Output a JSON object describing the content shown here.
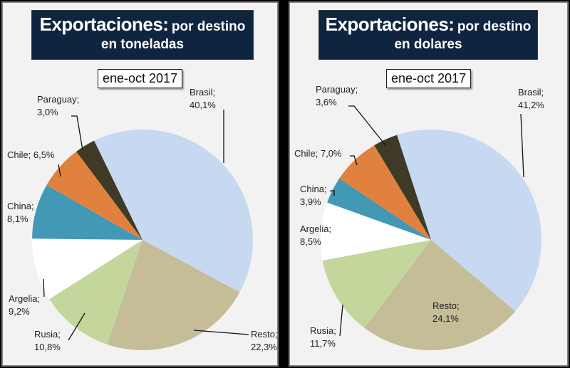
{
  "chart_data": [
    {
      "type": "pie",
      "title": "Exportaciones: por destino",
      "subtitle": "en toneladas",
      "period": "ene-oct 2017",
      "unit": "%",
      "slices": [
        {
          "label": "Brasil",
          "value": 40.1,
          "text": "40,1%",
          "color": "#c6d9f1"
        },
        {
          "label": "Resto",
          "value": 22.3,
          "text": "22,3%",
          "color": "#c4bd97"
        },
        {
          "label": "Rusia",
          "value": 10.8,
          "text": "10,8%",
          "color": "#c3d69b"
        },
        {
          "label": "Argelia",
          "value": 9.2,
          "text": "9,2%",
          "color": "#ffffff"
        },
        {
          "label": "China",
          "value": 8.1,
          "text": "8,1%",
          "color": "#4298b5"
        },
        {
          "label": "Chile",
          "value": 6.5,
          "text": "6,5%",
          "color": "#e0823d"
        },
        {
          "label": "Paraguay",
          "value": 3.0,
          "text": "3,0%",
          "color": "#3e3a26"
        }
      ]
    },
    {
      "type": "pie",
      "title": "Exportaciones: por destino",
      "subtitle": "en dolares",
      "period": "ene-oct 2017",
      "unit": "%",
      "slices": [
        {
          "label": "Brasil",
          "value": 41.2,
          "text": "41,2%",
          "color": "#c6d9f1"
        },
        {
          "label": "Resto",
          "value": 24.1,
          "text": "24,1%",
          "color": "#c4bd97"
        },
        {
          "label": "Rusia",
          "value": 11.7,
          "text": "11,7%",
          "color": "#c3d69b"
        },
        {
          "label": "Argelia",
          "value": 8.5,
          "text": "8,5%",
          "color": "#ffffff"
        },
        {
          "label": "China",
          "value": 3.9,
          "text": "3,9%",
          "color": "#4298b5"
        },
        {
          "label": "Chile",
          "value": 7.0,
          "text": "7,0%",
          "color": "#e0823d"
        },
        {
          "label": "Paraguay",
          "value": 3.6,
          "text": "3,6%",
          "color": "#3e3a26"
        }
      ]
    }
  ],
  "panels": [
    {
      "title_main": "Exportaciones:",
      "title_rest": "por destino",
      "title_line2": "en toneladas",
      "period": "ene-oct 2017"
    },
    {
      "title_main": "Exportaciones:",
      "title_rest": "por destino",
      "title_line2": "en dolares",
      "period": "ene-oct 2017"
    }
  ]
}
